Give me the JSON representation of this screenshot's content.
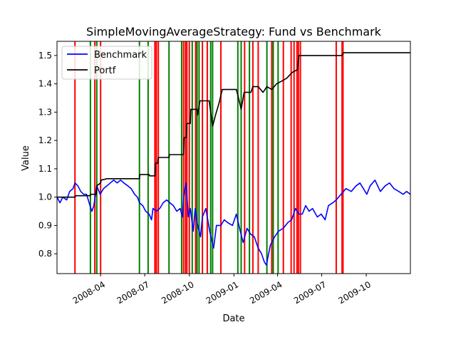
{
  "chart_data": {
    "type": "line",
    "title": "SimpleMovingAverageStrategy: Fund vs Benchmark",
    "xlabel": "Date",
    "ylabel": "Value",
    "xlim": [
      "2008-01-02",
      "2009-12-31"
    ],
    "ylim": [
      0.73,
      1.55
    ],
    "x_ticks": [
      "2008-04-01",
      "2008-07-01",
      "2008-10-01",
      "2009-01-01",
      "2009-04-01",
      "2009-07-01",
      "2009-10-01"
    ],
    "x_tick_labels": [
      "2008-04",
      "2008-07",
      "2008-10",
      "2009-01",
      "2009-04",
      "2009-07",
      "2009-10"
    ],
    "y_ticks": [
      0.8,
      0.9,
      1.0,
      1.1,
      1.2,
      1.3,
      1.4,
      1.5
    ],
    "y_tick_labels": [
      "0.8",
      "0.9",
      "1.0",
      "1.1",
      "1.2",
      "1.3",
      "1.4",
      "1.5"
    ],
    "legend": {
      "placement": "top-left",
      "entries": [
        "Benchmark",
        "Portf"
      ]
    },
    "grid": false,
    "series": [
      {
        "name": "Benchmark",
        "color": "#0000ff",
        "points": [
          [
            "2008-01-02",
            1.0
          ],
          [
            "2008-01-08",
            0.98
          ],
          [
            "2008-01-14",
            1.0
          ],
          [
            "2008-01-22",
            0.99
          ],
          [
            "2008-01-28",
            1.02
          ],
          [
            "2008-02-04",
            1.03
          ],
          [
            "2008-02-08",
            1.05
          ],
          [
            "2008-02-14",
            1.04
          ],
          [
            "2008-02-20",
            1.02
          ],
          [
            "2008-02-26",
            1.01
          ],
          [
            "2008-03-03",
            1.01
          ],
          [
            "2008-03-10",
            0.97
          ],
          [
            "2008-03-14",
            0.95
          ],
          [
            "2008-03-18",
            0.97
          ],
          [
            "2008-03-24",
            1.04
          ],
          [
            "2008-03-31",
            1.01
          ],
          [
            "2008-04-07",
            1.03
          ],
          [
            "2008-04-14",
            1.04
          ],
          [
            "2008-04-21",
            1.05
          ],
          [
            "2008-04-28",
            1.06
          ],
          [
            "2008-05-05",
            1.05
          ],
          [
            "2008-05-12",
            1.06
          ],
          [
            "2008-05-19",
            1.05
          ],
          [
            "2008-05-27",
            1.04
          ],
          [
            "2008-06-03",
            1.03
          ],
          [
            "2008-06-10",
            1.01
          ],
          [
            "2008-06-16",
            1.0
          ],
          [
            "2008-06-20",
            0.98
          ],
          [
            "2008-06-27",
            0.97
          ],
          [
            "2008-07-03",
            0.95
          ],
          [
            "2008-07-10",
            0.94
          ],
          [
            "2008-07-15",
            0.92
          ],
          [
            "2008-07-18",
            0.96
          ],
          [
            "2008-07-25",
            0.95
          ],
          [
            "2008-08-01",
            0.96
          ],
          [
            "2008-08-08",
            0.98
          ],
          [
            "2008-08-15",
            0.99
          ],
          [
            "2008-08-22",
            0.98
          ],
          [
            "2008-08-29",
            0.97
          ],
          [
            "2008-09-05",
            0.95
          ],
          [
            "2008-09-12",
            0.96
          ],
          [
            "2008-09-17",
            0.93
          ],
          [
            "2008-09-19",
            1.0
          ],
          [
            "2008-09-24",
            1.05
          ],
          [
            "2008-09-29",
            0.93
          ],
          [
            "2008-10-03",
            0.96
          ],
          [
            "2008-10-09",
            0.88
          ],
          [
            "2008-10-13",
            0.96
          ],
          [
            "2008-10-17",
            0.91
          ],
          [
            "2008-10-24",
            0.86
          ],
          [
            "2008-10-28",
            0.93
          ],
          [
            "2008-11-04",
            0.96
          ],
          [
            "2008-11-12",
            0.88
          ],
          [
            "2008-11-20",
            0.82
          ],
          [
            "2008-11-26",
            0.9
          ],
          [
            "2008-12-05",
            0.9
          ],
          [
            "2008-12-12",
            0.92
          ],
          [
            "2008-12-19",
            0.91
          ],
          [
            "2008-12-29",
            0.9
          ],
          [
            "2009-01-06",
            0.94
          ],
          [
            "2009-01-14",
            0.88
          ],
          [
            "2009-01-20",
            0.84
          ],
          [
            "2009-01-28",
            0.89
          ],
          [
            "2009-02-04",
            0.87
          ],
          [
            "2009-02-12",
            0.86
          ],
          [
            "2009-02-20",
            0.82
          ],
          [
            "2009-02-27",
            0.8
          ],
          [
            "2009-03-05",
            0.77
          ],
          [
            "2009-03-09",
            0.76
          ],
          [
            "2009-03-17",
            0.83
          ],
          [
            "2009-03-26",
            0.86
          ],
          [
            "2009-04-03",
            0.88
          ],
          [
            "2009-04-13",
            0.89
          ],
          [
            "2009-04-22",
            0.91
          ],
          [
            "2009-04-30",
            0.92
          ],
          [
            "2009-05-08",
            0.96
          ],
          [
            "2009-05-15",
            0.94
          ],
          [
            "2009-05-22",
            0.94
          ],
          [
            "2009-05-29",
            0.97
          ],
          [
            "2009-06-05",
            0.95
          ],
          [
            "2009-06-12",
            0.96
          ],
          [
            "2009-06-22",
            0.93
          ],
          [
            "2009-06-30",
            0.94
          ],
          [
            "2009-07-08",
            0.92
          ],
          [
            "2009-07-15",
            0.97
          ],
          [
            "2009-07-24",
            0.98
          ],
          [
            "2009-07-31",
            0.99
          ],
          [
            "2009-08-10",
            1.01
          ],
          [
            "2009-08-20",
            1.03
          ],
          [
            "2009-08-31",
            1.02
          ],
          [
            "2009-09-10",
            1.04
          ],
          [
            "2009-09-18",
            1.05
          ],
          [
            "2009-09-25",
            1.03
          ],
          [
            "2009-10-02",
            1.01
          ],
          [
            "2009-10-09",
            1.04
          ],
          [
            "2009-10-19",
            1.06
          ],
          [
            "2009-10-30",
            1.02
          ],
          [
            "2009-11-09",
            1.04
          ],
          [
            "2009-11-18",
            1.05
          ],
          [
            "2009-11-27",
            1.03
          ],
          [
            "2009-12-07",
            1.02
          ],
          [
            "2009-12-16",
            1.01
          ],
          [
            "2009-12-23",
            1.02
          ],
          [
            "2009-12-31",
            1.01
          ]
        ]
      },
      {
        "name": "Portf",
        "color": "#000000",
        "points": [
          [
            "2008-01-02",
            1.0
          ],
          [
            "2008-02-08",
            1.0
          ],
          [
            "2008-02-09",
            1.005
          ],
          [
            "2008-03-10",
            1.005
          ],
          [
            "2008-03-11",
            1.01
          ],
          [
            "2008-03-23",
            1.01
          ],
          [
            "2008-03-24",
            1.04
          ],
          [
            "2008-04-01",
            1.05
          ],
          [
            "2008-04-02",
            1.06
          ],
          [
            "2008-04-14",
            1.065
          ],
          [
            "2008-06-20",
            1.065
          ],
          [
            "2008-06-21",
            1.08
          ],
          [
            "2008-07-10",
            1.08
          ],
          [
            "2008-07-11",
            1.075
          ],
          [
            "2008-07-22",
            1.075
          ],
          [
            "2008-07-23",
            1.12
          ],
          [
            "2008-07-28",
            1.12
          ],
          [
            "2008-07-29",
            1.14
          ],
          [
            "2008-08-20",
            1.14
          ],
          [
            "2008-08-21",
            1.15
          ],
          [
            "2008-09-19",
            1.15
          ],
          [
            "2008-09-20",
            1.21
          ],
          [
            "2008-09-25",
            1.21
          ],
          [
            "2008-09-26",
            1.26
          ],
          [
            "2008-10-03",
            1.26
          ],
          [
            "2008-10-04",
            1.31
          ],
          [
            "2008-10-17",
            1.31
          ],
          [
            "2008-10-18",
            1.29
          ],
          [
            "2008-10-23",
            1.34
          ],
          [
            "2008-11-11",
            1.34
          ],
          [
            "2008-11-18",
            1.25
          ],
          [
            "2008-11-24",
            1.29
          ],
          [
            "2008-12-01",
            1.33
          ],
          [
            "2008-12-08",
            1.38
          ],
          [
            "2009-01-06",
            1.38
          ],
          [
            "2009-01-09",
            1.36
          ],
          [
            "2009-01-16",
            1.31
          ],
          [
            "2009-01-22",
            1.37
          ],
          [
            "2009-02-05",
            1.37
          ],
          [
            "2009-02-09",
            1.39
          ],
          [
            "2009-02-20",
            1.39
          ],
          [
            "2009-03-02",
            1.37
          ],
          [
            "2009-03-10",
            1.39
          ],
          [
            "2009-03-20",
            1.38
          ],
          [
            "2009-03-30",
            1.4
          ],
          [
            "2009-04-10",
            1.41
          ],
          [
            "2009-04-20",
            1.42
          ],
          [
            "2009-05-01",
            1.44
          ],
          [
            "2009-05-12",
            1.45
          ],
          [
            "2009-05-15",
            1.5
          ],
          [
            "2009-08-12",
            1.5
          ],
          [
            "2009-08-15",
            1.51
          ],
          [
            "2009-12-31",
            1.51
          ]
        ]
      }
    ],
    "vertical_markers": [
      {
        "color": "#ff0000",
        "dates": [
          "2008-02-08",
          "2008-03-20",
          "2008-04-01",
          "2008-07-22",
          "2008-07-25",
          "2008-07-29",
          "2008-09-19",
          "2008-09-23",
          "2008-09-26",
          "2008-10-01",
          "2008-10-14",
          "2008-10-28",
          "2008-11-07",
          "2008-12-05",
          "2009-01-23",
          "2009-02-09",
          "2009-02-20",
          "2009-03-20",
          "2009-04-13",
          "2009-04-29",
          "2009-05-05",
          "2009-05-11",
          "2009-05-14",
          "2009-05-18",
          "2009-07-31",
          "2009-08-12",
          "2009-08-14"
        ]
      },
      {
        "color": "#008000",
        "dates": [
          "2008-03-11",
          "2008-03-24",
          "2008-06-20",
          "2008-07-08",
          "2008-08-20",
          "2008-09-15",
          "2008-10-07",
          "2008-10-17",
          "2008-10-21",
          "2008-11-14",
          "2008-11-18",
          "2009-01-09",
          "2009-01-16",
          "2009-02-02",
          "2009-03-10",
          "2009-03-23",
          "2009-04-02"
        ]
      }
    ]
  }
}
